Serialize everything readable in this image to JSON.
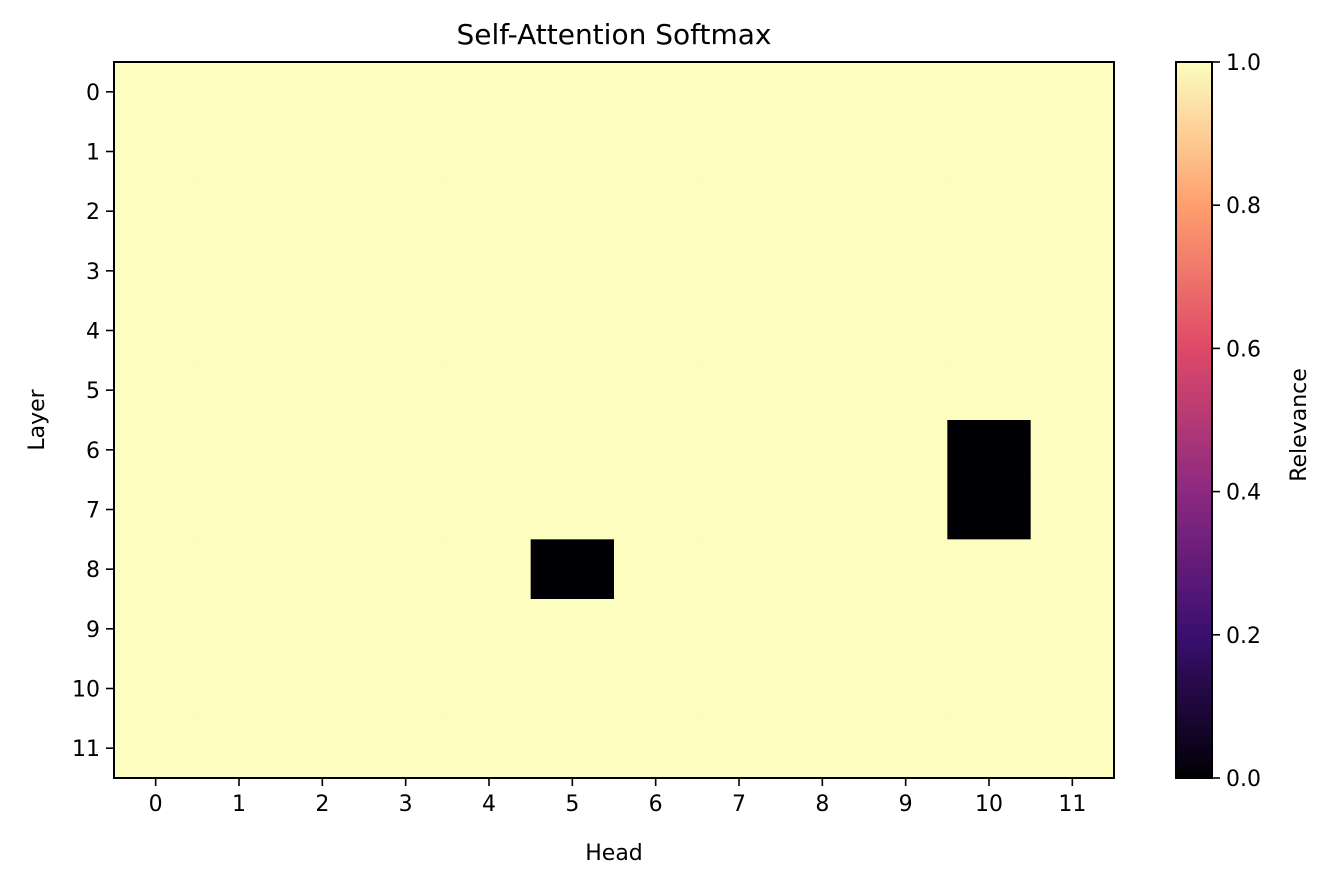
{
  "chart_data": {
    "type": "heatmap",
    "title": "Self-Attention Softmax",
    "xlabel": "Head",
    "ylabel": "Layer",
    "x_categories": [
      "0",
      "1",
      "2",
      "3",
      "4",
      "5",
      "6",
      "7",
      "8",
      "9",
      "10",
      "11"
    ],
    "y_categories": [
      "0",
      "1",
      "2",
      "3",
      "4",
      "5",
      "6",
      "7",
      "8",
      "9",
      "10",
      "11"
    ],
    "values": [
      [
        1,
        1,
        1,
        1,
        1,
        1,
        1,
        1,
        1,
        1,
        1,
        1
      ],
      [
        1,
        1,
        1,
        1,
        1,
        1,
        1,
        1,
        1,
        1,
        1,
        1
      ],
      [
        1,
        1,
        1,
        1,
        1,
        1,
        1,
        1,
        1,
        1,
        1,
        1
      ],
      [
        1,
        1,
        1,
        1,
        1,
        1,
        1,
        1,
        1,
        1,
        1,
        1
      ],
      [
        1,
        1,
        1,
        1,
        1,
        1,
        1,
        1,
        1,
        1,
        1,
        1
      ],
      [
        1,
        1,
        1,
        1,
        1,
        1,
        1,
        1,
        1,
        1,
        1,
        1
      ],
      [
        1,
        1,
        1,
        1,
        1,
        1,
        1,
        1,
        1,
        1,
        0,
        1
      ],
      [
        1,
        1,
        1,
        1,
        1,
        1,
        1,
        1,
        1,
        1,
        0,
        1
      ],
      [
        1,
        1,
        1,
        1,
        1,
        0,
        1,
        1,
        1,
        1,
        1,
        1
      ],
      [
        1,
        1,
        1,
        1,
        1,
        1,
        1,
        1,
        1,
        1,
        1,
        1
      ],
      [
        1,
        1,
        1,
        1,
        1,
        1,
        1,
        1,
        1,
        1,
        1,
        1
      ],
      [
        1,
        1,
        1,
        1,
        1,
        1,
        1,
        1,
        1,
        1,
        1,
        1
      ]
    ],
    "colorbar": {
      "label": "Relevance",
      "range": [
        0.0,
        1.0
      ],
      "ticks": [
        "0.0",
        "0.2",
        "0.4",
        "0.6",
        "0.8",
        "1.0"
      ],
      "colormap": "magma",
      "colormap_stops": [
        "#000004",
        "#3b0f70",
        "#8c2981",
        "#de4968",
        "#fe9f6d",
        "#fcfdbf"
      ]
    },
    "grid": false
  }
}
